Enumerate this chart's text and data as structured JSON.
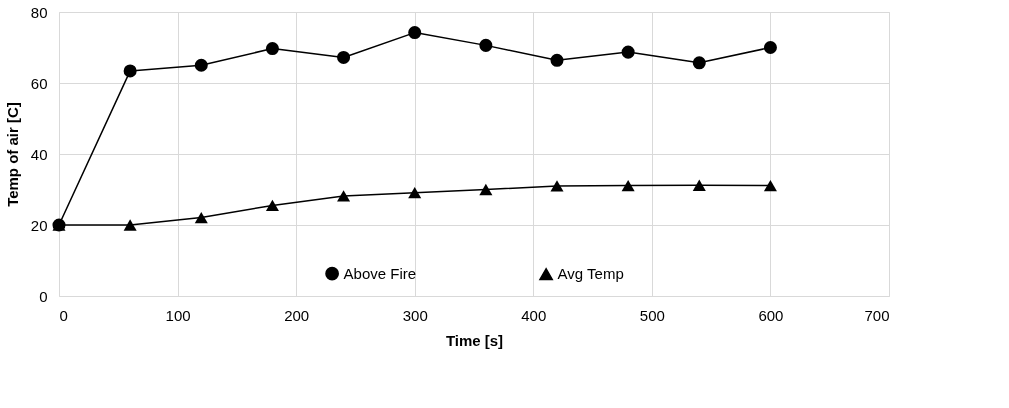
{
  "chart_data": {
    "type": "line",
    "xlabel": "Time [s]",
    "ylabel": "Temp of air [C]",
    "x": [
      0,
      60,
      120,
      180,
      240,
      300,
      360,
      420,
      480,
      540,
      600
    ],
    "series": [
      {
        "name": "Above Fire",
        "color": "#000000",
        "marker": "circle",
        "values": [
          20,
          63.4,
          65.0,
          69.7,
          67.2,
          74.2,
          70.6,
          66.4,
          68.7,
          65.7,
          70.0
        ]
      },
      {
        "name": "Avg Temp",
        "color": "#000000",
        "marker": "triangle",
        "values": [
          20,
          20,
          22.1,
          25.5,
          28.2,
          29.1,
          30.0,
          31.0,
          31.1,
          31.2,
          31.1
        ]
      }
    ],
    "xlim": [
      0,
      700
    ],
    "xticks": [
      0,
      100,
      200,
      300,
      400,
      500,
      600,
      700
    ],
    "ylim": [
      0,
      80
    ],
    "yticks": [
      0,
      20,
      40,
      60,
      80
    ],
    "grid": true,
    "legend": "bottom",
    "line_style": "solid"
  }
}
